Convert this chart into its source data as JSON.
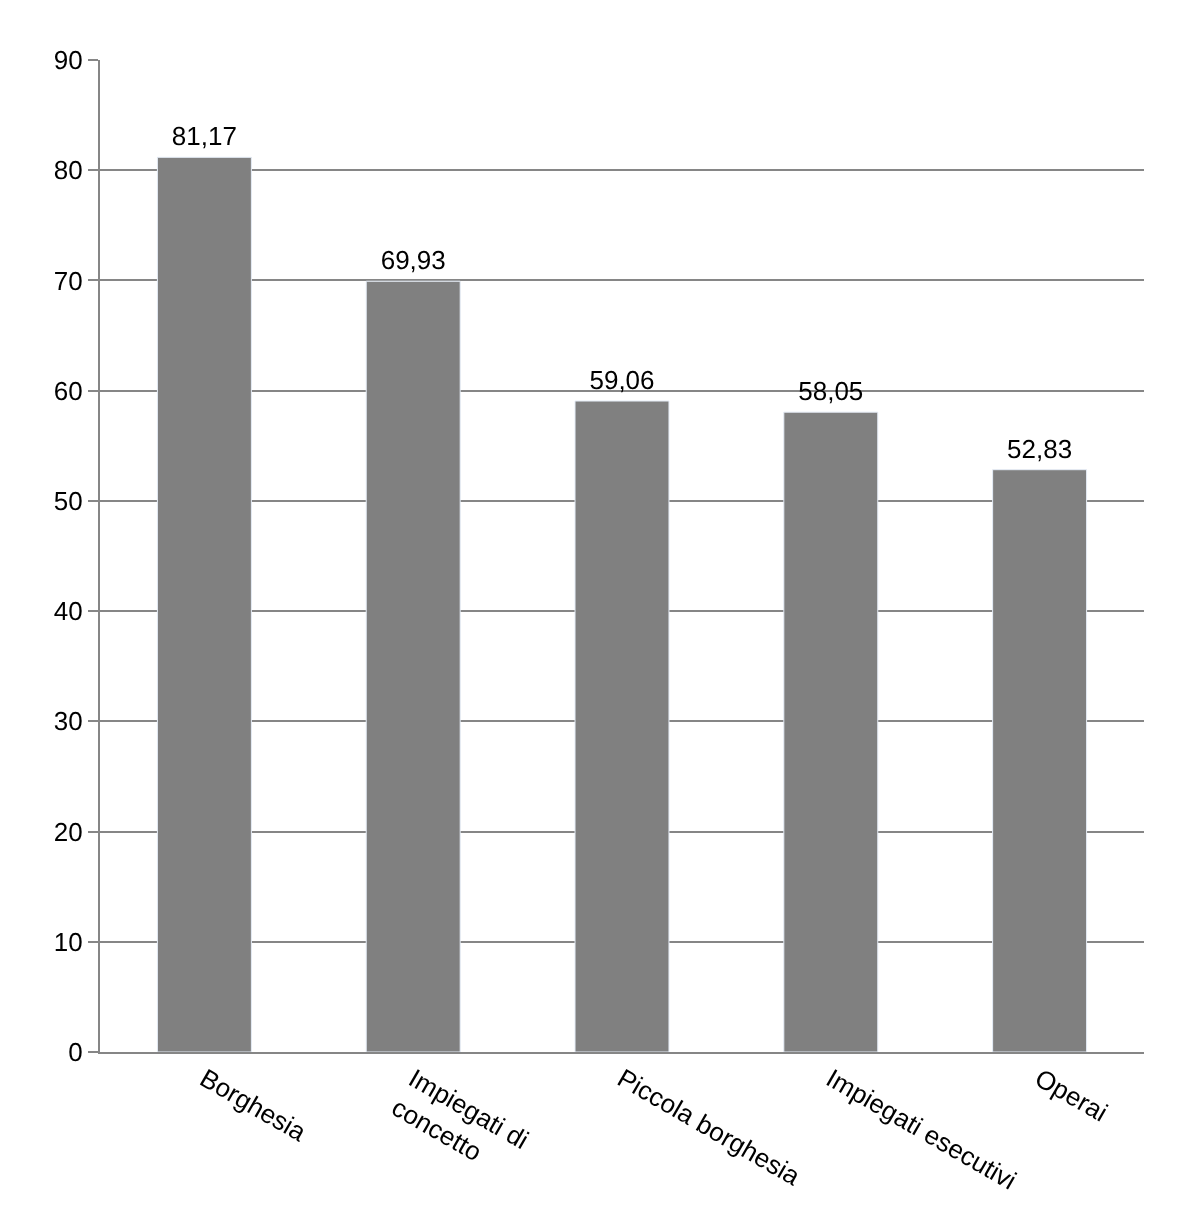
{
  "chart_data": {
    "type": "bar",
    "categories": [
      "Borghesia",
      "Impiegati di concetto",
      "Piccola borghesia",
      "Impiegati esecutivi",
      "Operai"
    ],
    "values": [
      81.17,
      69.93,
      59.06,
      58.05,
      52.83
    ],
    "value_labels": [
      "81,17",
      "69,93",
      "59,06",
      "58,05",
      "52,83"
    ],
    "color": "#808080",
    "ylim": [
      0,
      90
    ],
    "yticks": [
      0,
      10,
      20,
      30,
      40,
      50,
      60,
      70,
      80,
      90
    ],
    "grid": "y",
    "legend": false
  }
}
